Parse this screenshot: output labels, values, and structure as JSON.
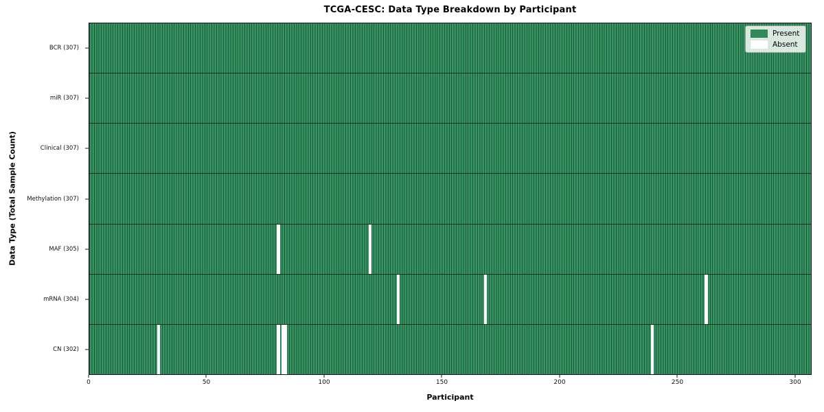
{
  "title": "TCGA-CESC: Data Type Breakdown by Participant",
  "legend": {
    "present_label": "Present",
    "absent_label": "Absent"
  },
  "colors": {
    "present": "#2e8b57",
    "absent": "#ffffff",
    "cell_edge": "rgba(8,38,23,0.55)"
  },
  "chart_data": {
    "type": "heatmap",
    "title": "TCGA-CESC: Data Type Breakdown by Participant",
    "xlabel": "Participant",
    "ylabel": "Data Type (Total Sample Count)",
    "x_range": [
      0,
      307
    ],
    "n_participants": 307,
    "x_ticks": [
      0,
      50,
      100,
      150,
      200,
      250,
      300
    ],
    "grid": false,
    "legend_position": "upper right",
    "legend": [
      {
        "label": "Present",
        "color": "#2e8b57"
      },
      {
        "label": "Absent",
        "color": "#ffffff"
      }
    ],
    "rows": [
      {
        "data_type": "BCR",
        "label": "BCR (307)",
        "total": 307,
        "absent_participants": []
      },
      {
        "data_type": "miR",
        "label": "miR (307)",
        "total": 307,
        "absent_participants": []
      },
      {
        "data_type": "Clinical",
        "label": "Clinical (307)",
        "total": 307,
        "absent_participants": []
      },
      {
        "data_type": "Methylation",
        "label": "Methylation (307)",
        "total": 307,
        "absent_participants": []
      },
      {
        "data_type": "MAF",
        "label": "MAF (305)",
        "total": 305,
        "absent_participants": [
          80,
          119
        ]
      },
      {
        "data_type": "mRNA",
        "label": "mRNA (304)",
        "total": 304,
        "absent_participants": [
          131,
          168,
          262
        ]
      },
      {
        "data_type": "CN",
        "label": "CN (302)",
        "total": 302,
        "absent_participants": [
          29,
          80,
          82,
          83,
          239
        ]
      }
    ]
  }
}
